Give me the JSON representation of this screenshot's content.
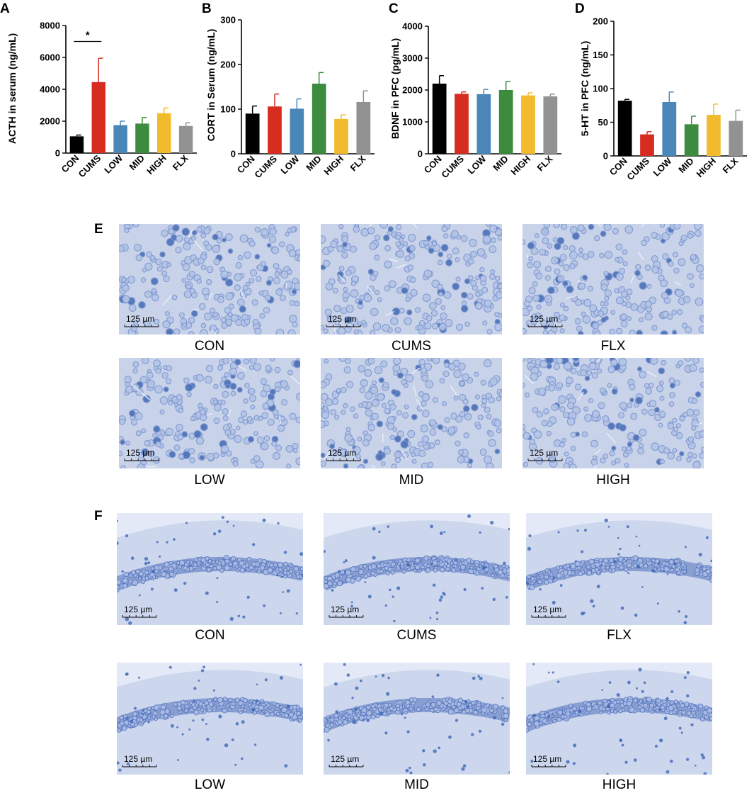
{
  "panels": {
    "a": "A",
    "b": "B",
    "c": "C",
    "d": "D",
    "e": "E",
    "f": "F"
  },
  "colors": {
    "CON": "#000000",
    "CUMS": "#d62d20",
    "LOW": "#4a87b8",
    "MID": "#3c8b3f",
    "HIGH": "#f2bb2e",
    "FLX": "#929292",
    "tissue_bg": "#c8d3ea",
    "cell": "#7d96cf",
    "nuclei_dark": "#4a70b8"
  },
  "chart_data": [
    {
      "type": "bar",
      "ylabel": "ACTH in serum (ng/mL)",
      "categories": [
        "CON",
        "CUMS",
        "LOW",
        "MID",
        "HIGH",
        "FLX"
      ],
      "values": [
        1050,
        4450,
        1750,
        1850,
        2500,
        1700
      ],
      "errors": [
        80,
        1500,
        250,
        380,
        330,
        200
      ],
      "ylim": [
        0,
        8000
      ],
      "yticks": [
        0,
        2000,
        4000,
        6000,
        8000
      ],
      "annotation": {
        "text": "*",
        "from": "CON",
        "to": "CUMS",
        "y": 7000
      }
    },
    {
      "type": "bar",
      "ylabel": "CORT in Serum (ng/mL)",
      "categories": [
        "CON",
        "CUMS",
        "LOW",
        "MID",
        "HIGH",
        "FLX"
      ],
      "values": [
        90,
        106,
        101,
        157,
        78,
        116
      ],
      "errors": [
        17,
        28,
        22,
        25,
        9,
        25
      ],
      "ylim": [
        0,
        300
      ],
      "yticks": [
        0,
        100,
        200,
        300
      ]
    },
    {
      "type": "bar",
      "ylabel": "BDNF in PFC (pg/mL)",
      "categories": [
        "CON",
        "CUMS",
        "LOW",
        "MID",
        "HIGH",
        "FLX"
      ],
      "values": [
        2200,
        1880,
        1870,
        2000,
        1830,
        1800
      ],
      "errors": [
        250,
        60,
        150,
        270,
        80,
        70
      ],
      "ylim": [
        0,
        4000
      ],
      "yticks": [
        0,
        1000,
        2000,
        3000,
        4000
      ]
    },
    {
      "type": "bar",
      "ylabel": "5-HT in PFC (ng/mL)",
      "categories": [
        "CON",
        "CUMS",
        "LOW",
        "MID",
        "HIGH",
        "FLX"
      ],
      "values": [
        82,
        32,
        80,
        47,
        61,
        52
      ],
      "errors": [
        2,
        4,
        15,
        12,
        16,
        16
      ],
      "ylim": [
        0,
        200
      ],
      "yticks": [
        0,
        50,
        100,
        150,
        200
      ]
    }
  ],
  "scale_label": "125 µm",
  "panel_e": {
    "top": [
      "CON",
      "CUMS",
      "FLX"
    ],
    "bottom": [
      "LOW",
      "MID",
      "HIGH"
    ]
  },
  "panel_f": {
    "top": [
      "CON",
      "CUMS",
      "FLX"
    ],
    "bottom": [
      "LOW",
      "MID",
      "HIGH"
    ]
  }
}
